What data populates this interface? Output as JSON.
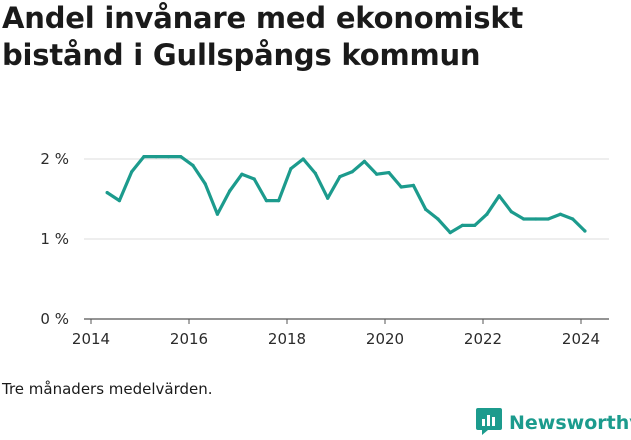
{
  "title": "Andel invånare med ekonomiskt bistånd i Gullspångs kommun",
  "note": "Tre månaders medelvärden.",
  "brand": {
    "name": "Newsworthy",
    "icon": "bar-chart-logo-icon",
    "color": "#1c9b8d"
  },
  "chart_data": {
    "type": "line",
    "title": "Andel invånare med ekonomiskt bistånd i Gullspångs kommun",
    "xlabel": "",
    "ylabel": "",
    "x_ticks": [
      "2014",
      "2016",
      "2018",
      "2020",
      "2022",
      "2024"
    ],
    "y_ticks": [
      "0 %",
      "1 %",
      "2 %"
    ],
    "xlim": [
      2014,
      2024.6
    ],
    "ylim": [
      0,
      2.0
    ],
    "grid": "horizontal",
    "series": [
      {
        "color": "#1c9b8d",
        "x": [
          2014.33,
          2014.58,
          2014.83,
          2015.08,
          2015.33,
          2015.58,
          2015.83,
          2016.08,
          2016.33,
          2016.58,
          2016.83,
          2017.08,
          2017.33,
          2017.58,
          2017.83,
          2018.08,
          2018.33,
          2018.58,
          2018.83,
          2019.08,
          2019.33,
          2019.58,
          2019.83,
          2020.08,
          2020.33,
          2020.58,
          2020.83,
          2021.08,
          2021.33,
          2021.58,
          2021.83,
          2022.08,
          2022.33,
          2022.58,
          2022.83,
          2023.08,
          2023.33,
          2023.58,
          2023.83,
          2024.08
        ],
        "y": [
          1.58,
          1.48,
          1.84,
          2.03,
          2.03,
          2.03,
          2.03,
          1.92,
          1.69,
          1.31,
          1.6,
          1.81,
          1.75,
          1.48,
          1.48,
          1.88,
          2.0,
          1.82,
          1.51,
          1.78,
          1.84,
          1.97,
          1.81,
          1.83,
          1.65,
          1.67,
          1.37,
          1.25,
          1.08,
          1.17,
          1.17,
          1.31,
          1.54,
          1.34,
          1.25,
          1.25,
          1.25,
          1.31,
          1.25,
          1.1
        ]
      }
    ]
  }
}
